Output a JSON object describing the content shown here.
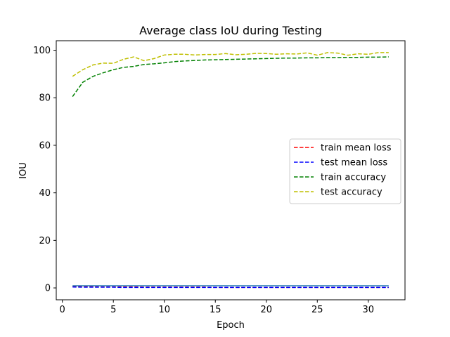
{
  "chart_data": {
    "type": "line",
    "title": "Average class IoU during Testing",
    "xlabel": "Epoch",
    "ylabel": "IOU",
    "xlim": [
      -0.6,
      33.6
    ],
    "ylim": [
      -5,
      104
    ],
    "xticks": [
      0,
      5,
      10,
      15,
      20,
      25,
      30
    ],
    "yticks": [
      0,
      20,
      40,
      60,
      80,
      100
    ],
    "grid": false,
    "legend_position": "center-right",
    "x": [
      1,
      2,
      3,
      4,
      5,
      6,
      7,
      8,
      9,
      10,
      11,
      12,
      13,
      14,
      15,
      16,
      17,
      18,
      19,
      20,
      21,
      22,
      23,
      24,
      25,
      26,
      27,
      28,
      29,
      30,
      31,
      32
    ],
    "series": [
      {
        "name": "train mean loss",
        "color": "#ff0000",
        "style": "dashed",
        "values": [
          0.6,
          0.5,
          0.5,
          0.4,
          0.4,
          0.4,
          0.4,
          0.3,
          0.3,
          0.3,
          0.3,
          0.3,
          0.3,
          0.3,
          0.2,
          0.2,
          0.2,
          0.2,
          0.2,
          0.2,
          0.2,
          0.2,
          0.2,
          0.2,
          0.2,
          0.2,
          0.2,
          0.2,
          0.2,
          0.2,
          0.2,
          0.2
        ]
      },
      {
        "name": "test mean loss",
        "color": "#0000ff",
        "style": "dashed",
        "values": [
          0.4,
          0.3,
          0.3,
          0.3,
          0.3,
          0.2,
          0.2,
          0.2,
          0.2,
          0.2,
          0.2,
          0.2,
          0.2,
          0.2,
          0.2,
          0.2,
          0.2,
          0.2,
          0.2,
          0.2,
          0.2,
          0.2,
          0.2,
          0.2,
          0.2,
          0.2,
          0.2,
          0.2,
          0.2,
          0.2,
          0.2,
          0.2
        ]
      },
      {
        "name": "train accuracy",
        "color": "#008000",
        "style": "dashed",
        "values": [
          80.5,
          86.5,
          89.0,
          90.5,
          91.8,
          92.8,
          93.2,
          94.0,
          94.3,
          94.7,
          95.2,
          95.5,
          95.7,
          95.9,
          96.0,
          96.1,
          96.2,
          96.3,
          96.4,
          96.5,
          96.6,
          96.7,
          96.7,
          96.8,
          96.8,
          96.9,
          96.9,
          97.0,
          97.0,
          97.1,
          97.1,
          97.2
        ]
      },
      {
        "name": "test accuracy",
        "color": "#bfbf00",
        "style": "dashed",
        "values": [
          89.0,
          91.8,
          93.8,
          94.6,
          94.5,
          96.2,
          97.2,
          95.6,
          96.5,
          98.0,
          98.3,
          98.3,
          98.0,
          98.2,
          98.2,
          98.6,
          98.1,
          98.3,
          98.7,
          98.6,
          98.3,
          98.5,
          98.4,
          98.9,
          97.9,
          99.0,
          98.8,
          97.9,
          98.5,
          98.3,
          99.0,
          99.0
        ]
      },
      {
        "name": "",
        "color": "#1f77b4",
        "style": "solid",
        "values": [
          0.9,
          0.9,
          0.9,
          0.9,
          0.9,
          0.9,
          0.9,
          0.9,
          0.9,
          0.9,
          0.9,
          0.9,
          0.9,
          0.9,
          0.9,
          0.9,
          0.9,
          0.9,
          0.9,
          0.9,
          0.9,
          0.9,
          0.9,
          0.9,
          0.9,
          0.9,
          0.9,
          0.9,
          0.9,
          0.9,
          0.9,
          0.9
        ]
      }
    ]
  }
}
